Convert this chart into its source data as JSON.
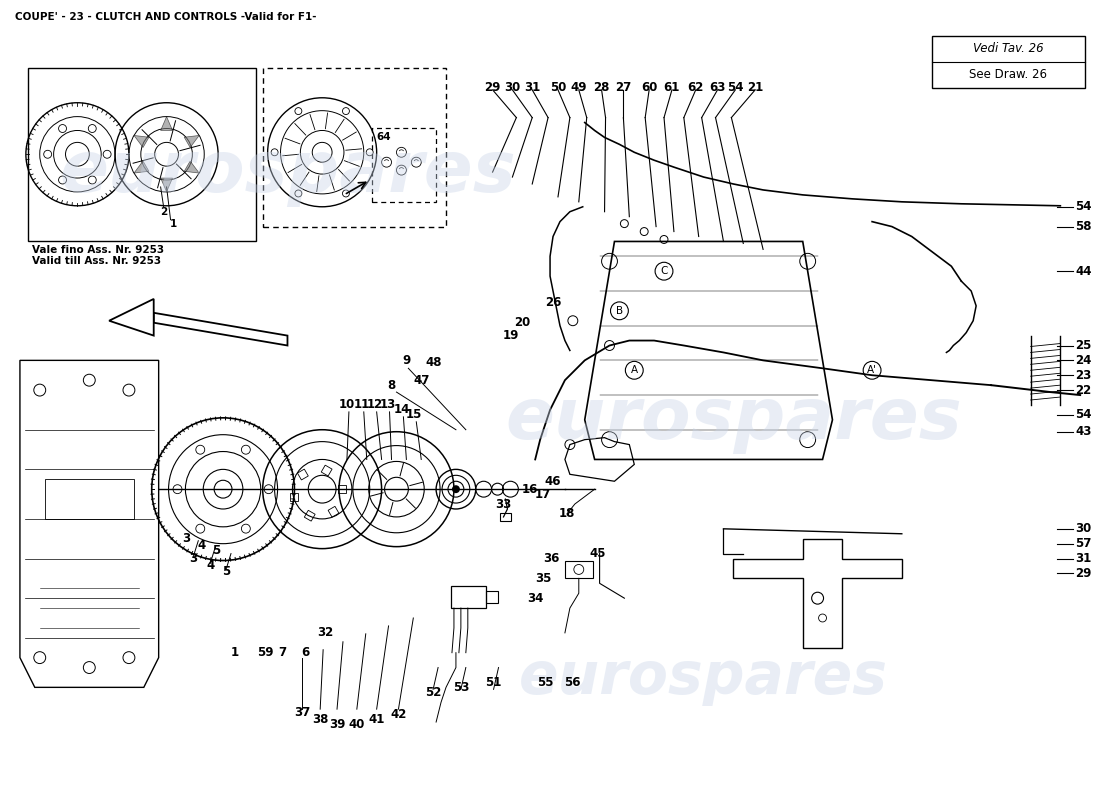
{
  "title": "COUPE' - 23 - CLUTCH AND CONTROLS -Valid for F1-",
  "title_fontsize": 8,
  "bg_color": "#ffffff",
  "line_color": "#000000",
  "ref_text_line1": "Vedi Tav. 26",
  "ref_text_line2": "See Draw. 26",
  "note_text_line1": "Vale fino Ass. Nr. 9253",
  "note_text_line2": "Valid till Ass. Nr. 9253",
  "wm_color": "#c8d4e8",
  "wm_alpha": 0.4
}
